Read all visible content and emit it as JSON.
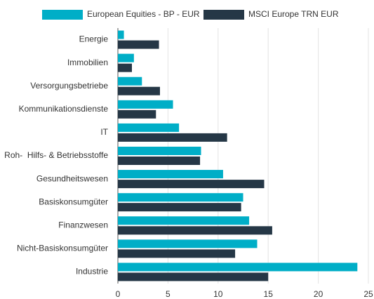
{
  "chart_data": {
    "type": "bar",
    "orientation": "horizontal",
    "categories": [
      "Energie",
      "Immobilien",
      "Versorgungsbetriebe",
      "Kommunikationsdienste",
      "IT",
      "Roh-  Hilfs- & Betriebsstoffe",
      "Gesundheitswesen",
      "Basiskonsumgüter",
      "Finanzwesen",
      "Nicht-Basiskonsumgüter",
      "Industrie"
    ],
    "series": [
      {
        "name": "European Equities - BP - EUR",
        "color": "#00aec7",
        "values": [
          0.6,
          1.6,
          2.4,
          5.5,
          6.1,
          8.3,
          10.5,
          12.5,
          13.1,
          13.9,
          23.9
        ]
      },
      {
        "name": "MSCI Europe TRN EUR",
        "color": "#253746",
        "values": [
          4.1,
          1.4,
          4.2,
          3.8,
          10.9,
          8.2,
          14.6,
          12.3,
          15.4,
          11.7,
          15.0
        ]
      }
    ],
    "xlim": [
      0,
      25
    ],
    "xticks": [
      0,
      5,
      10,
      15,
      20,
      25
    ],
    "grid": true,
    "legend": "top"
  }
}
